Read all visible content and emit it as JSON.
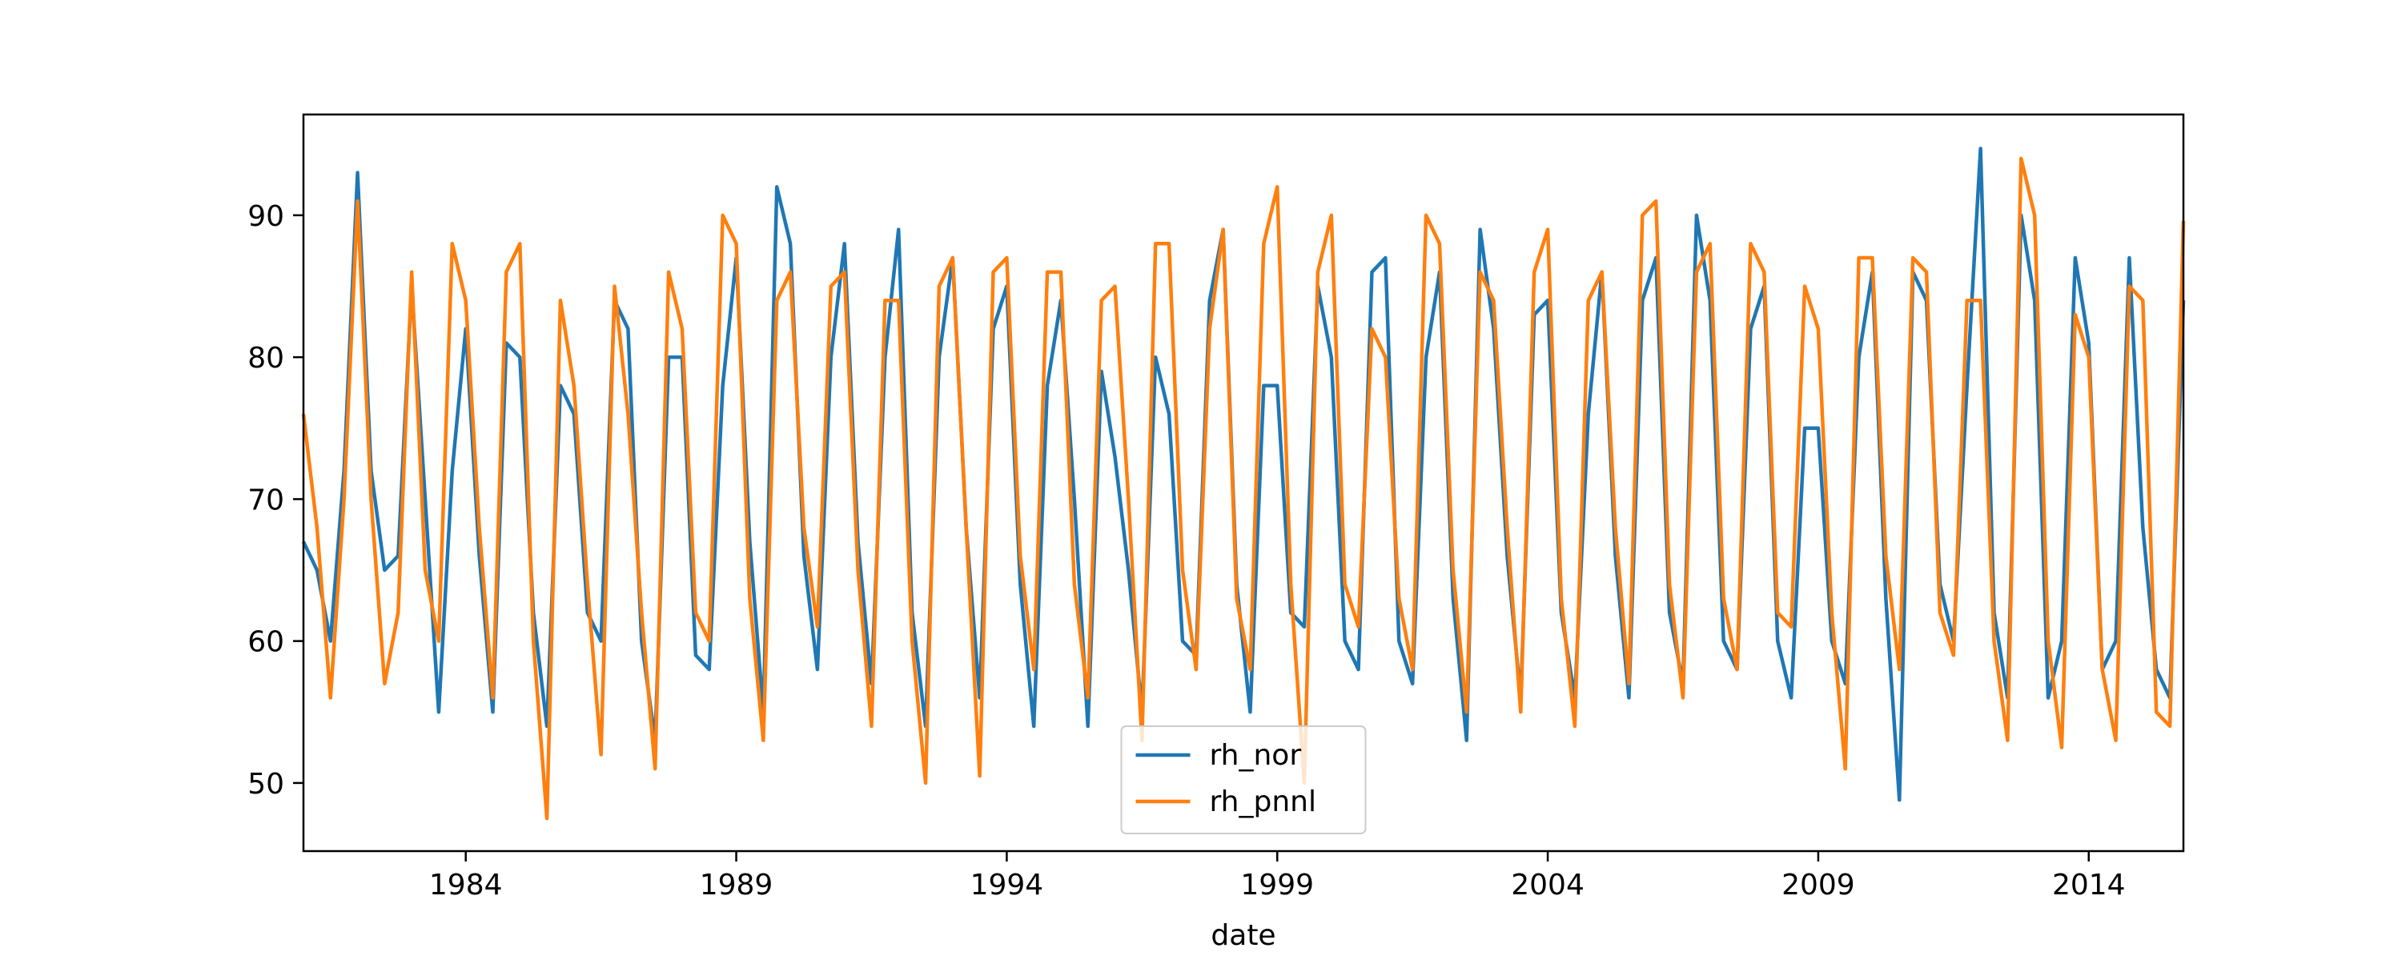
{
  "chart_data": {
    "type": "line",
    "xlabel": "date",
    "legend": "lower center",
    "grid": false,
    "xlim": [
      1981.0,
      2015.75
    ],
    "xticks": [
      1984,
      1989,
      1994,
      1999,
      2004,
      2009,
      2014
    ],
    "ylim": [
      45.2,
      97.1
    ],
    "yticks": [
      50,
      60,
      70,
      80,
      90
    ],
    "x": [
      1981.0,
      1981.25,
      1981.5,
      1981.75,
      1982.0,
      1982.25,
      1982.5,
      1982.75,
      1983.0,
      1983.25,
      1983.5,
      1983.75,
      1984.0,
      1984.25,
      1984.5,
      1984.75,
      1985.0,
      1985.25,
      1985.5,
      1985.75,
      1986.0,
      1986.25,
      1986.5,
      1986.75,
      1987.0,
      1987.25,
      1987.5,
      1987.75,
      1988.0,
      1988.25,
      1988.5,
      1988.75,
      1989.0,
      1989.25,
      1989.5,
      1989.75,
      1990.0,
      1990.25,
      1990.5,
      1990.75,
      1991.0,
      1991.25,
      1991.5,
      1991.75,
      1992.0,
      1992.25,
      1992.5,
      1992.75,
      1993.0,
      1993.25,
      1993.5,
      1993.75,
      1994.0,
      1994.25,
      1994.5,
      1994.75,
      1995.0,
      1995.25,
      1995.5,
      1995.75,
      1996.0,
      1996.25,
      1996.5,
      1996.75,
      1997.0,
      1997.25,
      1997.5,
      1997.75,
      1998.0,
      1998.25,
      1998.5,
      1998.75,
      1999.0,
      1999.25,
      1999.5,
      1999.75,
      2000.0,
      2000.25,
      2000.5,
      2000.75,
      2001.0,
      2001.25,
      2001.5,
      2001.75,
      2002.0,
      2002.25,
      2002.5,
      2002.75,
      2003.0,
      2003.25,
      2003.5,
      2003.75,
      2004.0,
      2004.25,
      2004.5,
      2004.75,
      2005.0,
      2005.25,
      2005.5,
      2005.75,
      2006.0,
      2006.25,
      2006.5,
      2006.75,
      2007.0,
      2007.25,
      2007.5,
      2007.75,
      2008.0,
      2008.25,
      2008.5,
      2008.75,
      2009.0,
      2009.25,
      2009.5,
      2009.75,
      2010.0,
      2010.25,
      2010.5,
      2010.75,
      2011.0,
      2011.25,
      2011.5,
      2011.75,
      2012.0,
      2012.25,
      2012.5,
      2012.75,
      2013.0,
      2013.25,
      2013.5,
      2013.75,
      2014.0,
      2014.25,
      2014.5,
      2014.75,
      2015.0,
      2015.25,
      2015.5,
      2015.75
    ],
    "series": [
      {
        "name": "rh_nor",
        "color": "#1f77b4",
        "values": [
          67,
          65,
          60,
          72,
          93,
          72,
          65,
          66,
          85,
          70,
          55,
          72,
          82,
          66,
          55,
          81,
          80,
          62,
          54,
          78,
          76,
          62,
          60,
          84,
          82,
          60,
          53,
          80,
          80,
          59,
          58,
          78,
          87,
          67,
          55,
          92,
          88,
          66,
          58,
          80,
          88,
          67,
          57,
          80,
          89,
          62,
          54,
          80,
          87,
          68,
          56,
          82,
          85,
          64,
          54,
          78,
          84,
          70,
          54,
          79,
          73,
          65,
          55,
          80,
          76,
          60,
          59,
          84,
          89,
          64,
          55,
          78,
          78,
          62,
          61,
          85,
          80,
          60,
          58,
          86,
          87,
          60,
          57,
          80,
          86,
          63,
          53,
          89,
          82,
          66,
          56,
          83,
          84,
          62,
          56,
          76,
          86,
          66,
          56,
          84,
          87,
          62,
          57,
          90,
          84,
          60,
          58,
          82,
          85,
          60,
          56,
          75,
          75,
          60,
          57,
          80,
          86,
          63,
          48.8,
          86,
          84,
          64,
          60,
          78,
          94.7,
          62,
          56,
          90,
          84,
          56,
          60,
          87,
          81,
          58,
          60,
          87,
          68,
          58,
          56,
          84
        ]
      },
      {
        "name": "rh_pnnl",
        "color": "#ff7f0e",
        "values": [
          76,
          68,
          56,
          70,
          91,
          70,
          57,
          62,
          86,
          65,
          60,
          88,
          84,
          68,
          56,
          86,
          88,
          60,
          47.5,
          84,
          78,
          64,
          52,
          85,
          76,
          62,
          51,
          86,
          82,
          62,
          60,
          90,
          88,
          63,
          53,
          84,
          86,
          68,
          61,
          85,
          86,
          65,
          54,
          84,
          84,
          60,
          50,
          85,
          87,
          68,
          50.5,
          86,
          87,
          66,
          58,
          86,
          86,
          64,
          56,
          84,
          85,
          70,
          53,
          88,
          88,
          65,
          58,
          82,
          89,
          63,
          58,
          88,
          92,
          64,
          50,
          86,
          90,
          64,
          61,
          82,
          80,
          63,
          58,
          90,
          88,
          65,
          55,
          86,
          84,
          68,
          55,
          86,
          89,
          63,
          54,
          84,
          86,
          68,
          57,
          90,
          91,
          64,
          56,
          86,
          88,
          63,
          58,
          88,
          86,
          62,
          61,
          85,
          82,
          62,
          51,
          87,
          87,
          66,
          58,
          87,
          86,
          62,
          59,
          84,
          84,
          60,
          53,
          94,
          90,
          60,
          52.5,
          83,
          80,
          58,
          53,
          85,
          84,
          55,
          54,
          89.6
        ]
      }
    ]
  }
}
